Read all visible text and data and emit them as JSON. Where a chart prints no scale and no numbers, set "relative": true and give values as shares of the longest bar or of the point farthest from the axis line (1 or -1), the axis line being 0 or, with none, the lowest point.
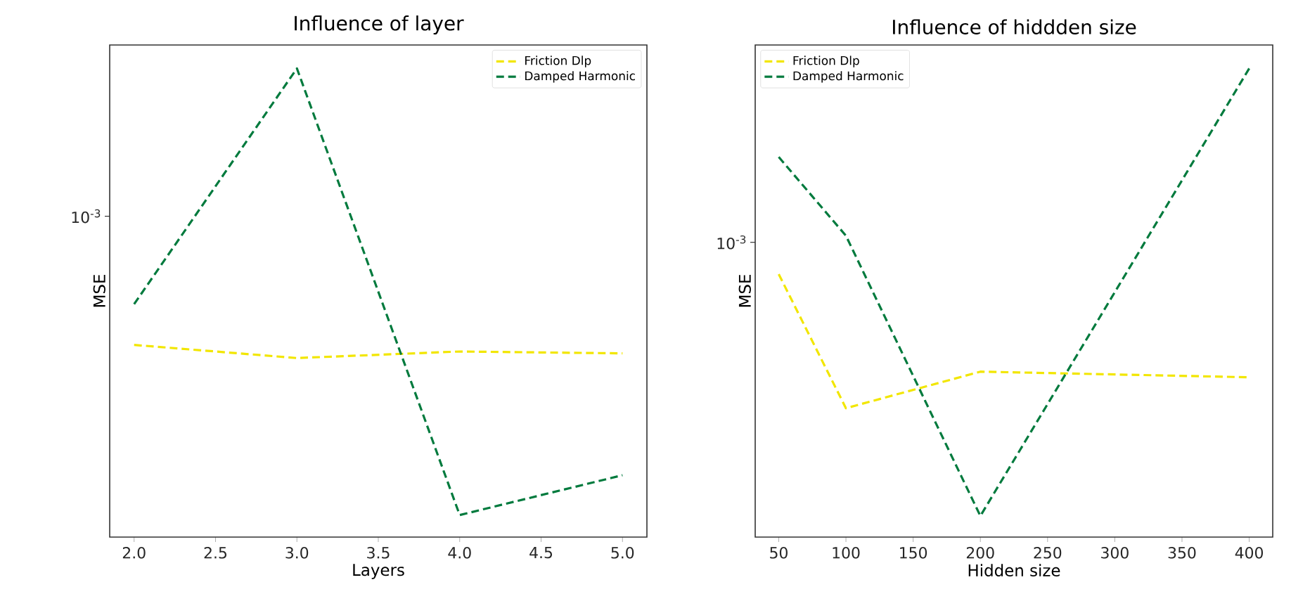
{
  "chart_data": [
    {
      "type": "line",
      "title": "Influence of layer",
      "xlabel": "Layers",
      "ylabel": "MSE",
      "x": [
        2,
        3,
        4,
        5
      ],
      "series": [
        {
          "name": "Friction Dlp",
          "color": "#f2e600",
          "values": [
            0.41,
            0.382,
            0.396,
            0.392
          ]
        },
        {
          "name": "Damped Harmonic",
          "color": "#007a3d",
          "values": [
            0.497,
            1,
            0.047,
            0.132
          ]
        }
      ],
      "relative": true,
      "xlim": [
        1.85,
        5.15
      ],
      "xticks": [
        {
          "value": 2,
          "label": "2.0"
        },
        {
          "value": 2.5,
          "label": "2.5"
        },
        {
          "value": 3,
          "label": "3.0"
        },
        {
          "value": 3.5,
          "label": "3.5"
        },
        {
          "value": 4,
          "label": "4.0"
        },
        {
          "value": 4.5,
          "label": "4.5"
        },
        {
          "value": 5,
          "label": "5.0"
        }
      ],
      "annotations": [
        "10$^{-3}$"
      ],
      "legend": "top right",
      "line_style": "dashed"
    },
    {
      "type": "line",
      "title": "Influence of hiddden size",
      "xlabel": "Hidden size",
      "ylabel": "MSE",
      "x": [
        50,
        100,
        200,
        400
      ],
      "series": [
        {
          "name": "Friction Dlp",
          "color": "#f2e600",
          "values": [
            0.561,
            0.275,
            0.353,
            0.341
          ]
        },
        {
          "name": "Damped Harmonic",
          "color": "#007a3d",
          "values": [
            0.811,
            0.643,
            0.045,
            1
          ]
        }
      ],
      "relative": true,
      "xlim": [
        32.5,
        417.5
      ],
      "xticks": [
        50,
        100,
        150,
        200,
        250,
        300,
        350,
        400
      ],
      "annotations": [
        "10$^{-3}$"
      ],
      "legend": "top left",
      "line_style": "dashed"
    }
  ]
}
